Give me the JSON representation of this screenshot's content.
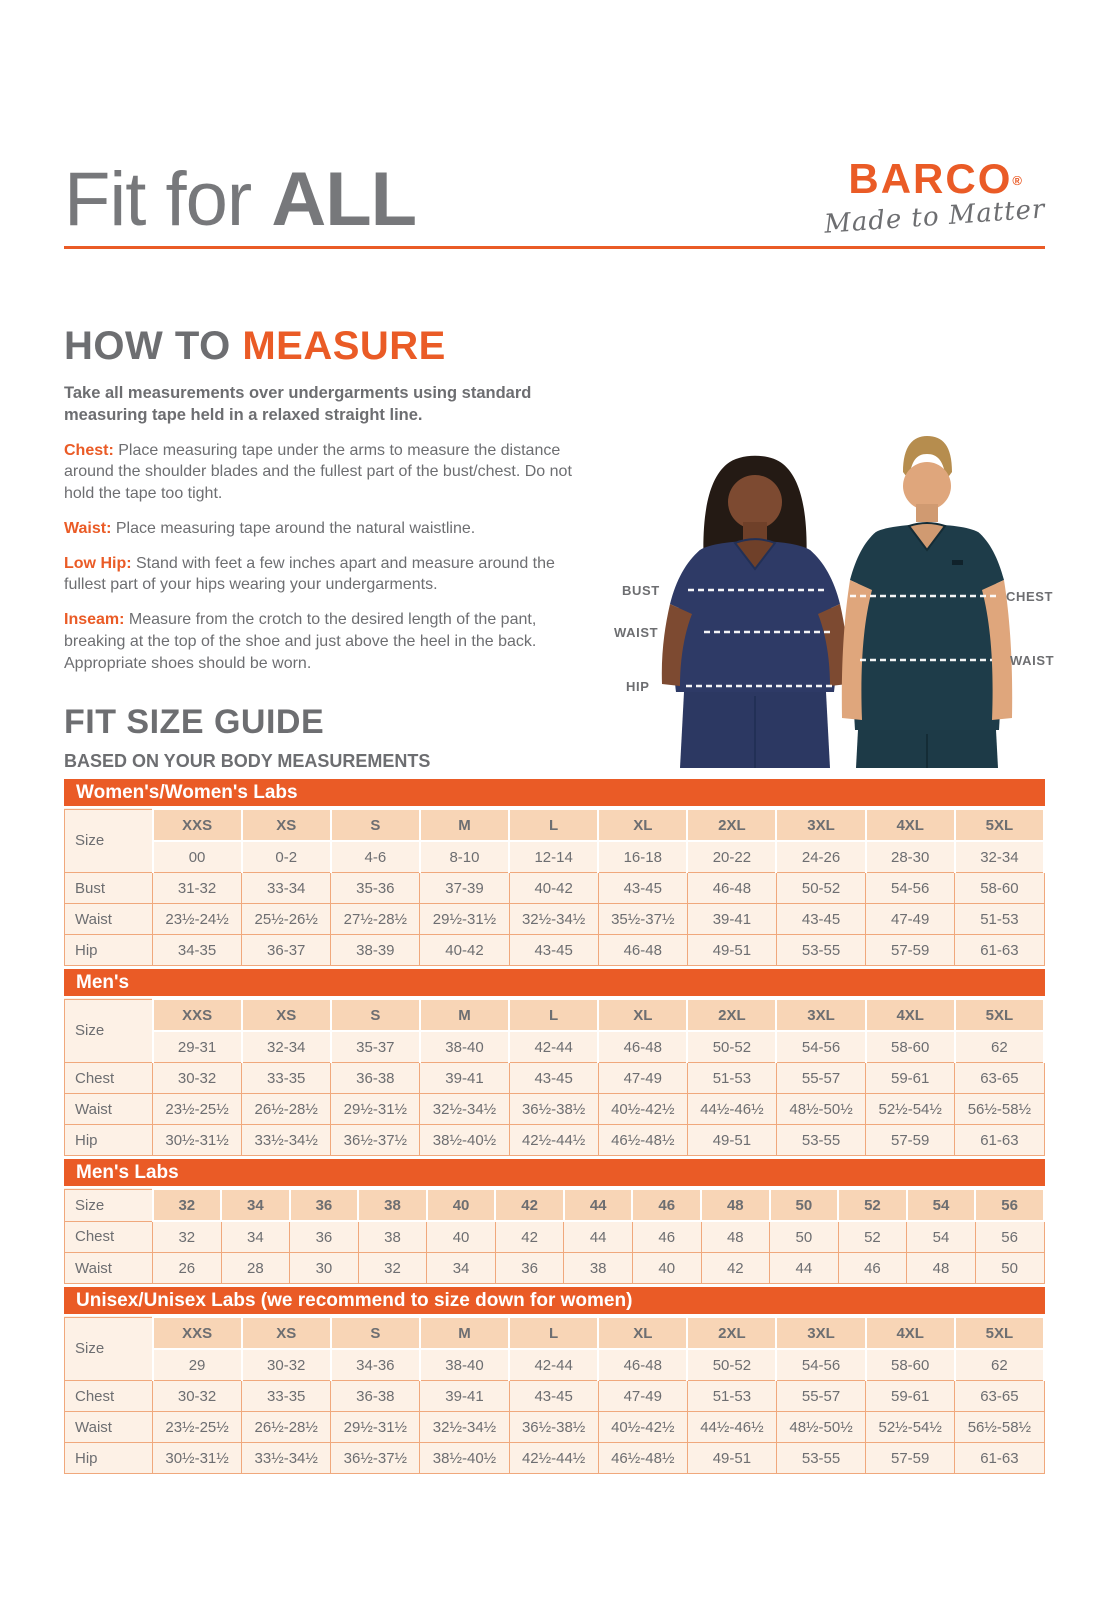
{
  "colors": {
    "accent_orange": "#ea5b26",
    "text_gray": "#6d6e71",
    "title_gray": "#77787b",
    "banner_bg": "#ea5b26",
    "header_cell_bg": "#f8d5b6",
    "data_cell_bg": "#fdf1e6",
    "cell_border": "#f0a87c",
    "woman_scrub_navy": "#2e3a66",
    "man_scrub_teal": "#1e3c49"
  },
  "header": {
    "title_light": "Fit for ",
    "title_bold": "ALL",
    "brand": "BARCO",
    "registered_mark": "®",
    "tagline": "Made to Matter"
  },
  "how_to_measure": {
    "title_gray": "HOW TO ",
    "title_orange": "MEASURE",
    "intro": "Take all measurements over undergarments using standard measuring tape held in a relaxed straight line.",
    "items": [
      {
        "label": "Chest:",
        "text": " Place measuring tape under the arms to measure the distance around the shoulder blades and the fullest part of the bust/chest. Do not hold the tape too tight."
      },
      {
        "label": "Waist:",
        "text": " Place measuring tape around the natural waistline."
      },
      {
        "label": "Low Hip:",
        "text": " Stand with feet a few inches apart and measure around the fullest part of your hips wearing your undergarments."
      },
      {
        "label": "Inseam:",
        "text": " Measure from the crotch to the desired length of the pant, breaking at the top of the shoe and just above the heel in the back. Appropriate shoes should be worn."
      }
    ]
  },
  "figure": {
    "labels_left": [
      "BUST",
      "WAIST",
      "HIP"
    ],
    "labels_right": [
      "CHEST",
      "WAIST"
    ]
  },
  "size_guide": {
    "title": "FIT SIZE GUIDE",
    "subtitle": "BASED ON YOUR BODY MEASUREMENTS",
    "size_label": "Size",
    "tables": [
      {
        "id": "womens",
        "banner": "Women's/Women's Labs",
        "columns": [
          "XXS",
          "XS",
          "S",
          "M",
          "L",
          "XL",
          "2XL",
          "3XL",
          "4XL",
          "5XL"
        ],
        "size_numeric": [
          "00",
          "0-2",
          "4-6",
          "8-10",
          "12-14",
          "16-18",
          "20-22",
          "24-26",
          "28-30",
          "32-34"
        ],
        "rows": [
          {
            "label": "Bust",
            "values": [
              "31-32",
              "33-34",
              "35-36",
              "37-39",
              "40-42",
              "43-45",
              "46-48",
              "50-52",
              "54-56",
              "58-60"
            ]
          },
          {
            "label": "Waist",
            "values": [
              "23½-24½",
              "25½-26½",
              "27½-28½",
              "29½-31½",
              "32½-34½",
              "35½-37½",
              "39-41",
              "43-45",
              "47-49",
              "51-53"
            ]
          },
          {
            "label": "Hip",
            "values": [
              "34-35",
              "36-37",
              "38-39",
              "40-42",
              "43-45",
              "46-48",
              "49-51",
              "53-55",
              "57-59",
              "61-63"
            ]
          }
        ]
      },
      {
        "id": "mens",
        "banner": "Men's",
        "columns": [
          "XXS",
          "XS",
          "S",
          "M",
          "L",
          "XL",
          "2XL",
          "3XL",
          "4XL",
          "5XL"
        ],
        "size_numeric": [
          "29-31",
          "32-34",
          "35-37",
          "38-40",
          "42-44",
          "46-48",
          "50-52",
          "54-56",
          "58-60",
          "62"
        ],
        "rows": [
          {
            "label": "Chest",
            "values": [
              "30-32",
              "33-35",
              "36-38",
              "39-41",
              "43-45",
              "47-49",
              "51-53",
              "55-57",
              "59-61",
              "63-65"
            ]
          },
          {
            "label": "Waist",
            "values": [
              "23½-25½",
              "26½-28½",
              "29½-31½",
              "32½-34½",
              "36½-38½",
              "40½-42½",
              "44½-46½",
              "48½-50½",
              "52½-54½",
              "56½-58½"
            ]
          },
          {
            "label": "Hip",
            "values": [
              "30½-31½",
              "33½-34½",
              "36½-37½",
              "38½-40½",
              "42½-44½",
              "46½-48½",
              "49-51",
              "53-55",
              "57-59",
              "61-63"
            ]
          }
        ]
      },
      {
        "id": "mens-labs",
        "banner": "Men's Labs",
        "columns": [
          "32",
          "34",
          "36",
          "38",
          "40",
          "42",
          "44",
          "46",
          "48",
          "50",
          "52",
          "54",
          "56"
        ],
        "rows": [
          {
            "label": "Chest",
            "values": [
              "32",
              "34",
              "36",
              "38",
              "40",
              "42",
              "44",
              "46",
              "48",
              "50",
              "52",
              "54",
              "56"
            ]
          },
          {
            "label": "Waist",
            "values": [
              "26",
              "28",
              "30",
              "32",
              "34",
              "36",
              "38",
              "40",
              "42",
              "44",
              "46",
              "48",
              "50"
            ]
          }
        ]
      },
      {
        "id": "unisex",
        "banner": "Unisex/Unisex Labs (we recommend to size down for women)",
        "columns": [
          "XXS",
          "XS",
          "S",
          "M",
          "L",
          "XL",
          "2XL",
          "3XL",
          "4XL",
          "5XL"
        ],
        "size_numeric": [
          "29",
          "30-32",
          "34-36",
          "38-40",
          "42-44",
          "46-48",
          "50-52",
          "54-56",
          "58-60",
          "62"
        ],
        "rows": [
          {
            "label": "Chest",
            "values": [
              "30-32",
              "33-35",
              "36-38",
              "39-41",
              "43-45",
              "47-49",
              "51-53",
              "55-57",
              "59-61",
              "63-65"
            ]
          },
          {
            "label": "Waist",
            "values": [
              "23½-25½",
              "26½-28½",
              "29½-31½",
              "32½-34½",
              "36½-38½",
              "40½-42½",
              "44½-46½",
              "48½-50½",
              "52½-54½",
              "56½-58½"
            ]
          },
          {
            "label": "Hip",
            "values": [
              "30½-31½",
              "33½-34½",
              "36½-37½",
              "38½-40½",
              "42½-44½",
              "46½-48½",
              "49-51",
              "53-55",
              "57-59",
              "61-63"
            ]
          }
        ]
      }
    ]
  }
}
